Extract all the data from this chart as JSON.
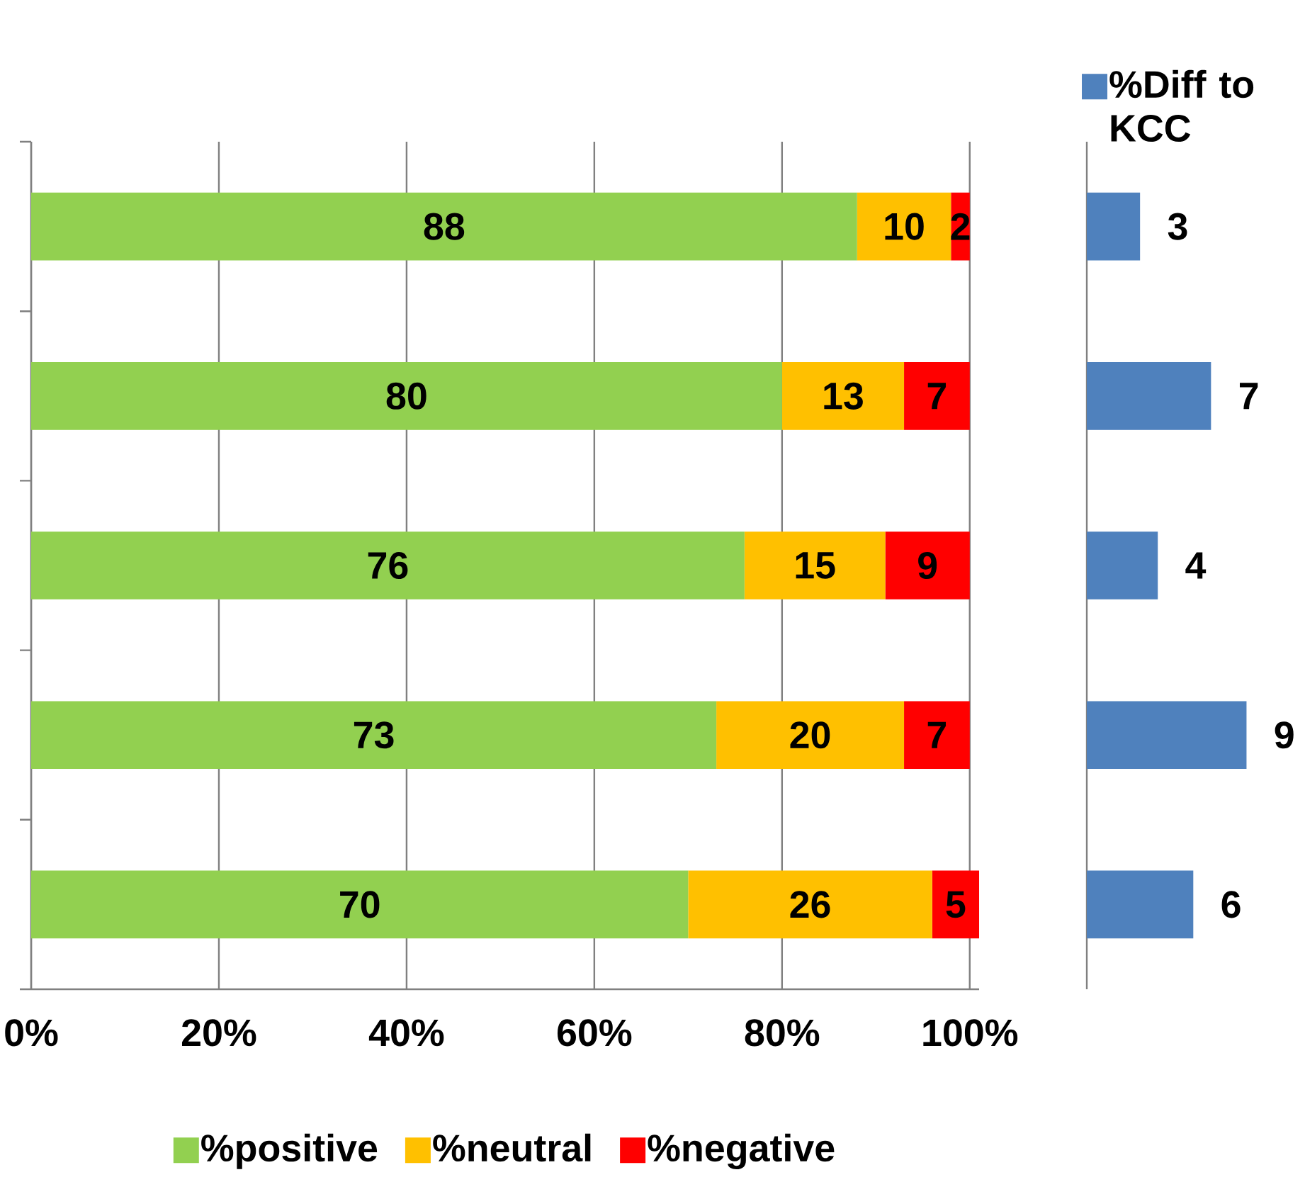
{
  "chart_data": [
    {
      "type": "bar",
      "orientation": "horizontal",
      "stacked": true,
      "categories": [
        null,
        null,
        null,
        null,
        null
      ],
      "series": [
        {
          "name": "%positive",
          "color": "#92d050",
          "values": [
            88,
            80,
            76,
            73,
            70
          ]
        },
        {
          "name": "%neutral",
          "color": "#ffc000",
          "values": [
            10,
            13,
            15,
            20,
            26
          ]
        },
        {
          "name": "%negative",
          "color": "#ff0000",
          "values": [
            2,
            7,
            9,
            7,
            5
          ]
        }
      ],
      "xlim": [
        0,
        101
      ],
      "xticks": [
        {
          "value": 0,
          "label": "0%"
        },
        {
          "value": 20,
          "label": "20%"
        },
        {
          "value": 40,
          "label": "40%"
        },
        {
          "value": 60,
          "label": "60%"
        },
        {
          "value": 80,
          "label": "80%"
        },
        {
          "value": 100,
          "label": "100%"
        }
      ],
      "grid": "x",
      "legend": "bottom",
      "data_labels": true
    },
    {
      "type": "bar",
      "orientation": "horizontal",
      "categories": [
        null,
        null,
        null,
        null,
        null
      ],
      "series": [
        {
          "name": "%Diff to KCC",
          "color": "#4f81bd",
          "values": [
            3,
            7,
            4,
            9,
            6
          ]
        }
      ],
      "legend": "top",
      "data_labels": true
    }
  ]
}
